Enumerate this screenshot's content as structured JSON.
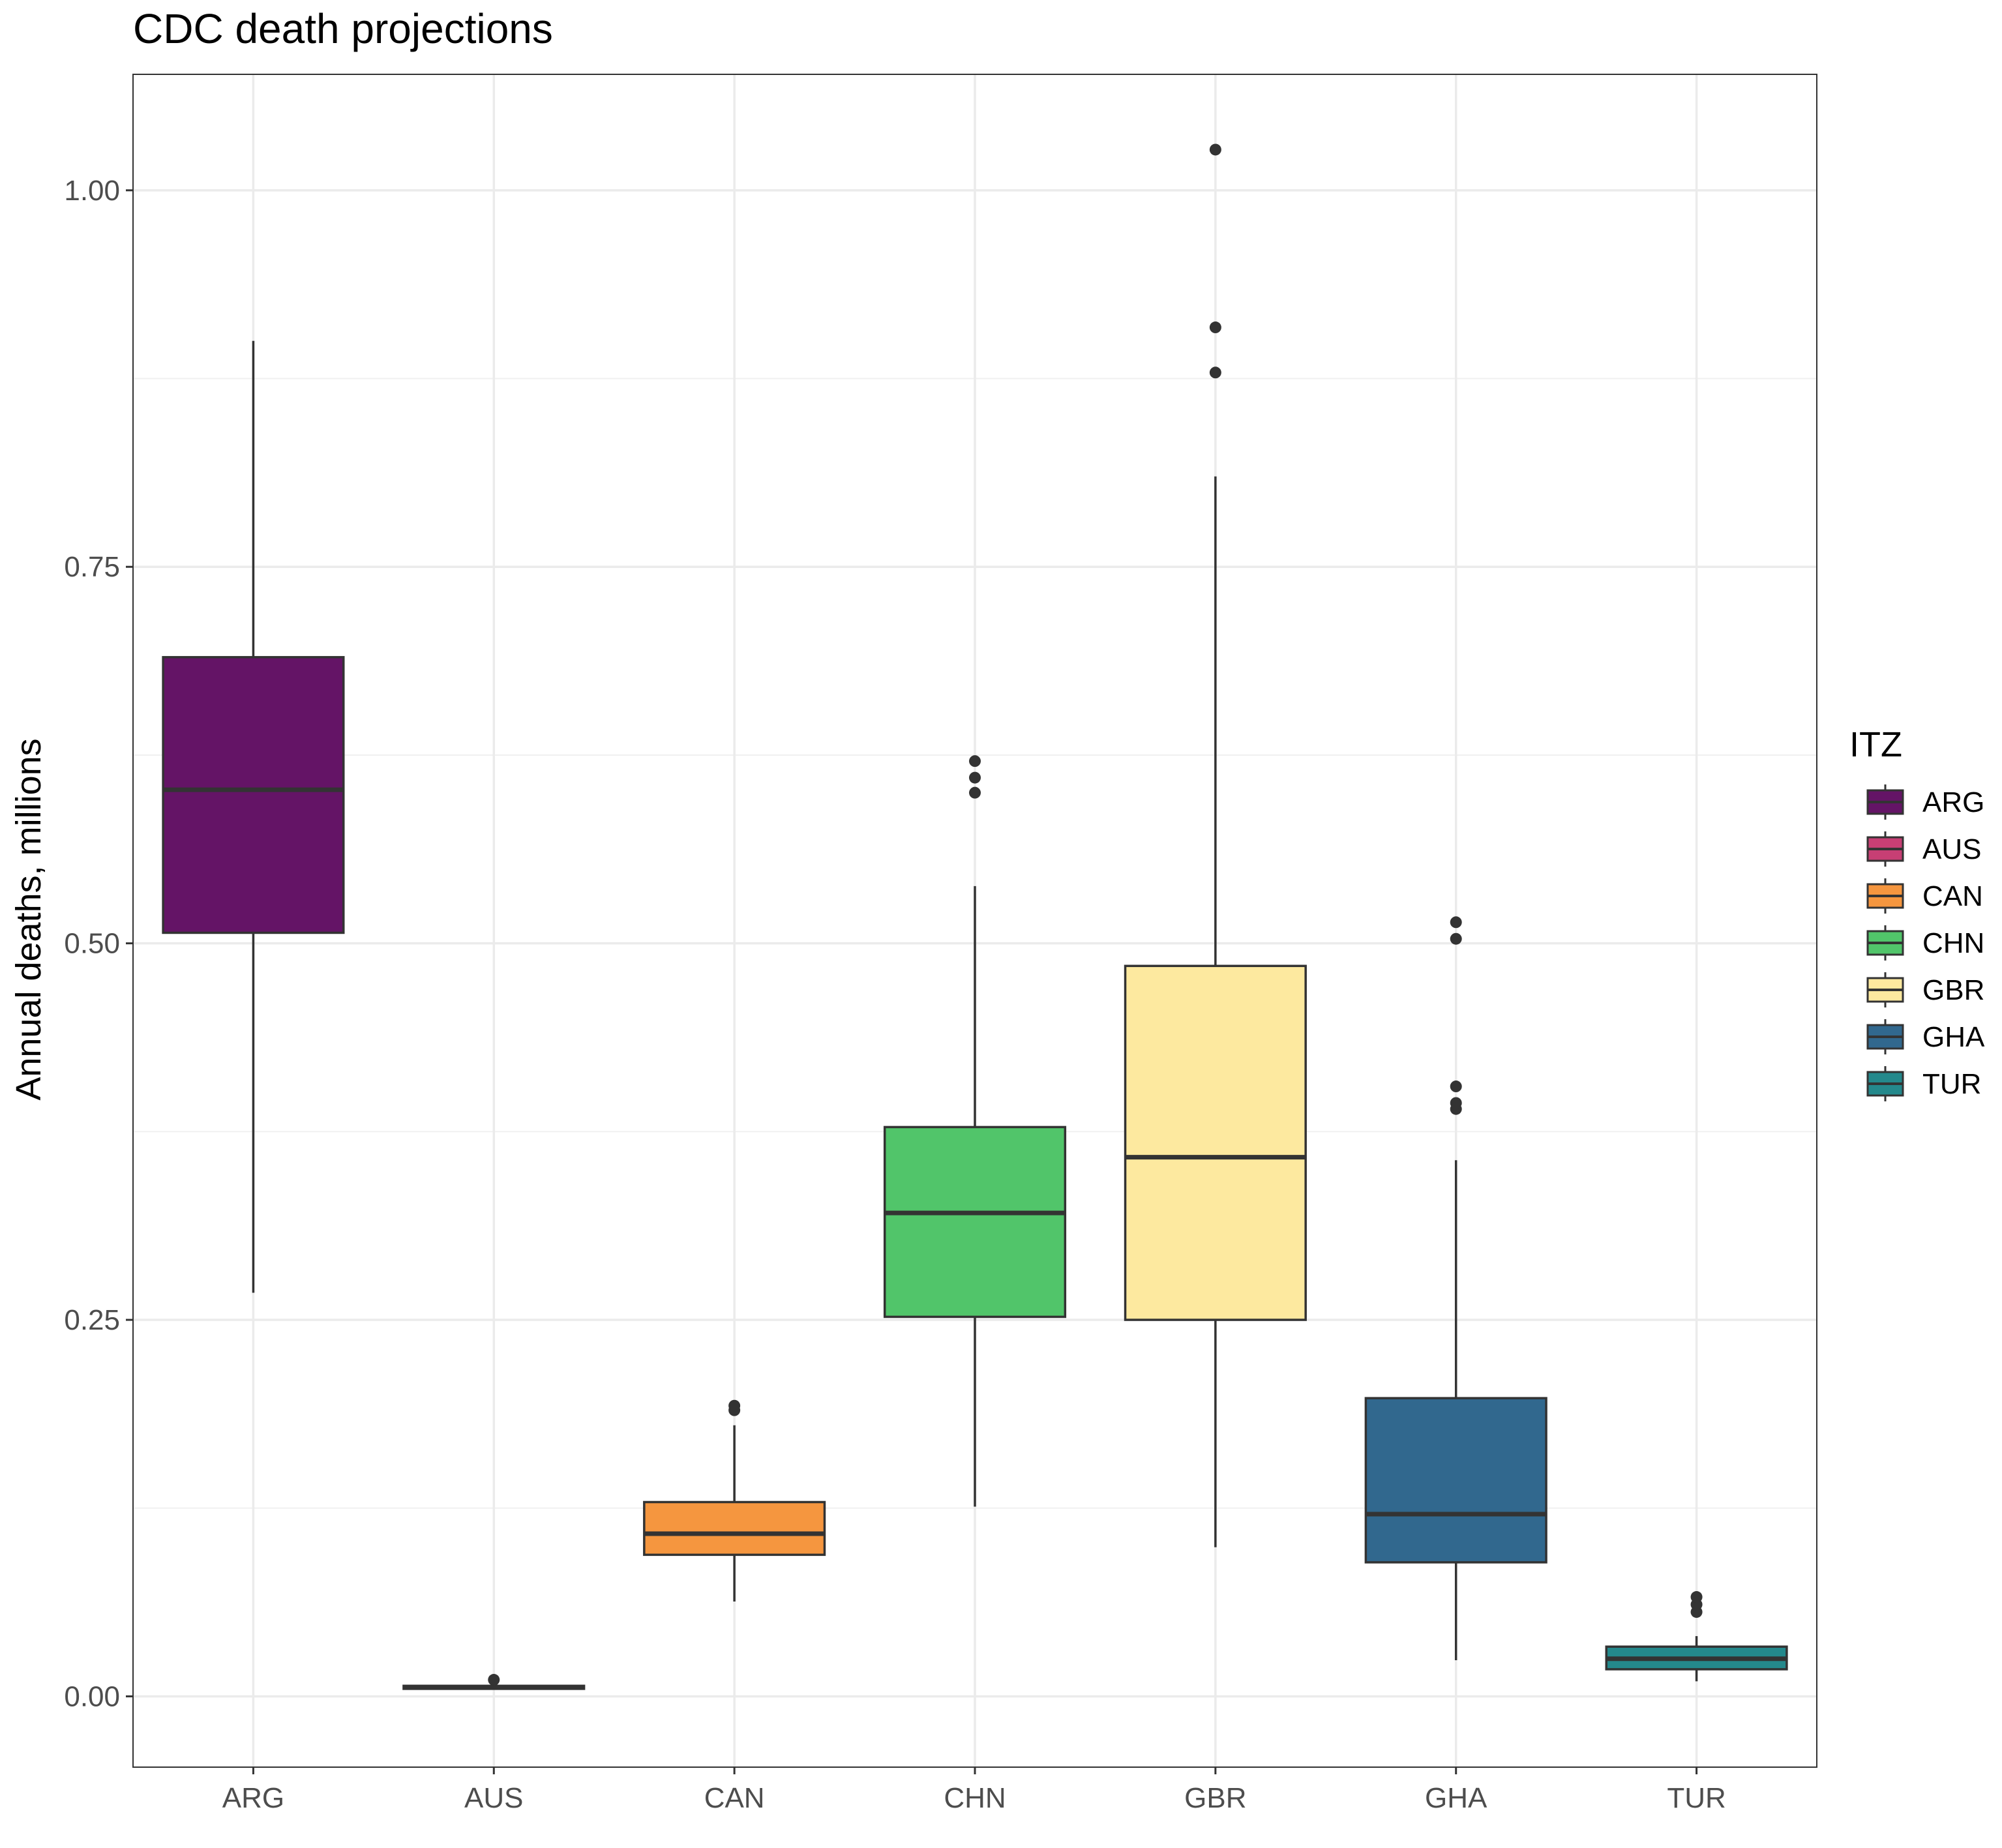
{
  "chart_data": {
    "type": "boxplot",
    "title": "CDC death projections",
    "xlabel": "",
    "ylabel": "Annual deaths, millions",
    "ylim": [
      -0.047,
      1.077
    ],
    "y_ticks": [
      0.0,
      0.25,
      0.5,
      0.75,
      1.0
    ],
    "y_tick_labels": [
      "0.00",
      "0.25",
      "0.50",
      "0.75",
      "1.00"
    ],
    "grid": true,
    "legend": {
      "title": "ITZ",
      "position": "right"
    },
    "categories": [
      "ARG",
      "AUS",
      "CAN",
      "CHN",
      "GBR",
      "GHA",
      "TUR"
    ],
    "boxes": [
      {
        "category": "ARG",
        "color": "#641466",
        "whisker_low": 0.268,
        "q1": 0.507,
        "median": 0.602,
        "q3": 0.69,
        "whisker_high": 0.9,
        "outliers": []
      },
      {
        "category": "AUS",
        "color": "#c73f74",
        "whisker_low": 0.005,
        "q1": 0.005,
        "median": 0.006,
        "q3": 0.007,
        "whisker_high": 0.007,
        "outliers": [
          0.011
        ]
      },
      {
        "category": "CAN",
        "color": "#f5963f",
        "whisker_low": 0.063,
        "q1": 0.094,
        "median": 0.108,
        "q3": 0.129,
        "whisker_high": 0.18,
        "outliers": [
          0.19,
          0.193
        ]
      },
      {
        "category": "CHN",
        "color": "#51c56a",
        "whisker_low": 0.126,
        "q1": 0.252,
        "median": 0.321,
        "q3": 0.378,
        "whisker_high": 0.538,
        "outliers": [
          0.6,
          0.61,
          0.621
        ]
      },
      {
        "category": "GBR",
        "color": "#fde99f",
        "whisker_low": 0.099,
        "q1": 0.25,
        "median": 0.358,
        "q3": 0.485,
        "whisker_high": 0.81,
        "outliers": [
          0.879,
          0.909,
          1.027
        ]
      },
      {
        "category": "GHA",
        "color": "#31688e",
        "whisker_low": 0.024,
        "q1": 0.089,
        "median": 0.121,
        "q3": 0.198,
        "whisker_high": 0.356,
        "outliers": [
          0.39,
          0.394,
          0.405,
          0.503,
          0.514
        ]
      },
      {
        "category": "TUR",
        "color": "#24898c",
        "whisker_low": 0.01,
        "q1": 0.018,
        "median": 0.025,
        "q3": 0.033,
        "whisker_high": 0.04,
        "outliers": [
          0.056,
          0.061,
          0.066
        ]
      }
    ]
  }
}
